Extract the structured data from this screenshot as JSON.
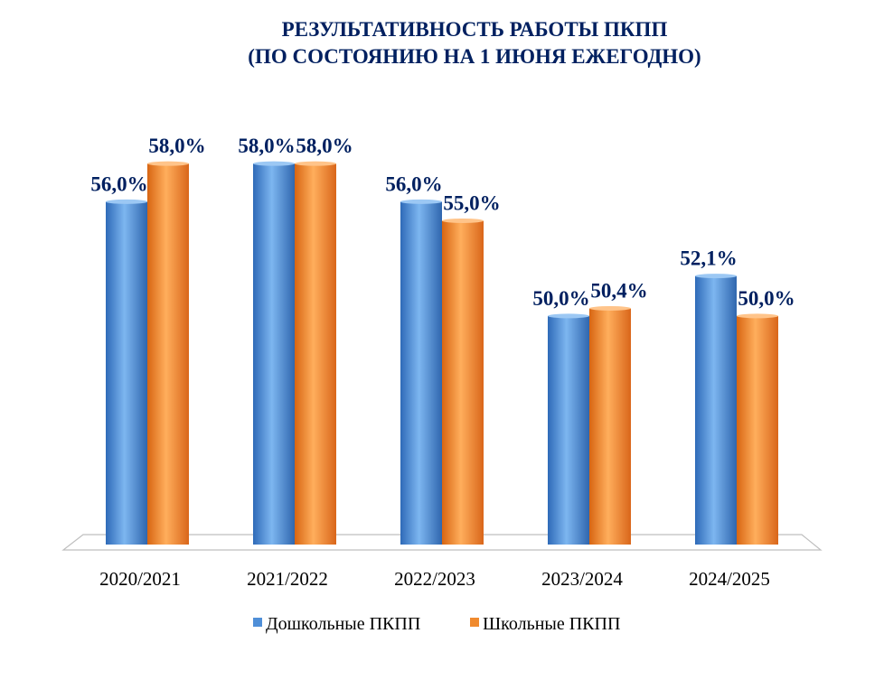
{
  "chart_data": {
    "type": "bar",
    "title": "РЕЗУЛЬТАТИВНОСТЬ РАБОТЫ ПКПП",
    "subtitle": "(ПО СОСТОЯНИЮ НА 1 ИЮНЯ ЕЖЕГОДНО)",
    "categories": [
      "2020/2021",
      "2021/2022",
      "2022/2023",
      "2023/2024",
      "2024/2025"
    ],
    "series": [
      {
        "name": "Дошкольные ПКПП",
        "color": "#4F8FD8",
        "values": [
          56.0,
          58.0,
          56.0,
          50.0,
          52.1
        ],
        "labels": [
          "56,0%",
          "58,0%",
          "56,0%",
          "50,0%",
          "52,1%"
        ]
      },
      {
        "name": "Школьные ПКПП",
        "color": "#F08A2E",
        "values": [
          58.0,
          58.0,
          55.0,
          50.4,
          50.0
        ],
        "labels": [
          "58,0%",
          "58,0%",
          "55,0%",
          "50,4%",
          "50,0%"
        ]
      }
    ],
    "ylim": [
      38,
      60
    ],
    "grid": false,
    "legend_position": "bottom"
  }
}
